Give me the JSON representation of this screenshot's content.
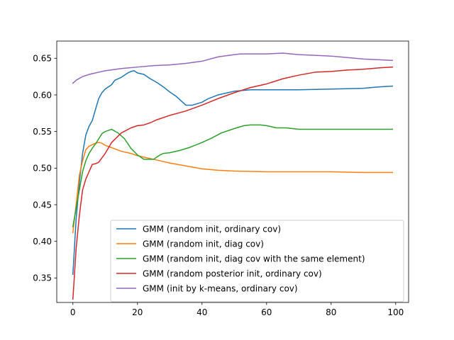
{
  "chart_data": {
    "type": "line",
    "title": "",
    "xlabel": "",
    "ylabel": "",
    "xlim": [
      -5,
      104
    ],
    "ylim": [
      0.3165,
      0.6735
    ],
    "x_ticks": [
      0,
      20,
      40,
      60,
      80,
      100
    ],
    "x_tick_labels": [
      "0",
      "20",
      "40",
      "60",
      "80",
      "100"
    ],
    "y_ticks": [
      0.35,
      0.4,
      0.45,
      0.5,
      0.55,
      0.6,
      0.65
    ],
    "y_tick_labels": [
      "0.35",
      "0.40",
      "0.45",
      "0.50",
      "0.55",
      "0.60",
      "0.65"
    ],
    "grid": false,
    "legend_placement": "lower-right",
    "series": [
      {
        "name": "GMM (random init, ordinary cov)",
        "color": "#1f77b4",
        "points": [
          [
            0,
            0.355
          ],
          [
            1,
            0.43
          ],
          [
            2,
            0.48
          ],
          [
            3,
            0.52
          ],
          [
            4,
            0.545
          ],
          [
            5,
            0.557
          ],
          [
            6,
            0.565
          ],
          [
            7,
            0.58
          ],
          [
            8,
            0.595
          ],
          [
            9,
            0.603
          ],
          [
            10,
            0.608
          ],
          [
            12,
            0.614
          ],
          [
            13,
            0.62
          ],
          [
            15,
            0.624
          ],
          [
            17,
            0.63
          ],
          [
            18,
            0.632
          ],
          [
            19,
            0.633
          ],
          [
            20,
            0.63
          ],
          [
            22,
            0.628
          ],
          [
            24,
            0.622
          ],
          [
            26,
            0.617
          ],
          [
            28,
            0.611
          ],
          [
            30,
            0.604
          ],
          [
            32,
            0.598
          ],
          [
            34,
            0.59
          ],
          [
            35,
            0.586
          ],
          [
            37,
            0.586
          ],
          [
            40,
            0.59
          ],
          [
            42,
            0.595
          ],
          [
            45,
            0.6
          ],
          [
            48,
            0.603
          ],
          [
            50,
            0.605
          ],
          [
            55,
            0.607
          ],
          [
            60,
            0.607
          ],
          [
            70,
            0.607
          ],
          [
            80,
            0.608
          ],
          [
            90,
            0.609
          ],
          [
            95,
            0.611
          ],
          [
            99,
            0.612
          ]
        ]
      },
      {
        "name": "GMM (random init, diag cov)",
        "color": "#ff7f0e",
        "points": [
          [
            0,
            0.412
          ],
          [
            1,
            0.45
          ],
          [
            2,
            0.49
          ],
          [
            3,
            0.51
          ],
          [
            4,
            0.525
          ],
          [
            5,
            0.53
          ],
          [
            6,
            0.532
          ],
          [
            7,
            0.534
          ],
          [
            8,
            0.535
          ],
          [
            9,
            0.534
          ],
          [
            10,
            0.531
          ],
          [
            12,
            0.528
          ],
          [
            15,
            0.523
          ],
          [
            18,
            0.52
          ],
          [
            20,
            0.517
          ],
          [
            25,
            0.512
          ],
          [
            30,
            0.507
          ],
          [
            35,
            0.503
          ],
          [
            40,
            0.499
          ],
          [
            45,
            0.497
          ],
          [
            50,
            0.496
          ],
          [
            60,
            0.495
          ],
          [
            70,
            0.495
          ],
          [
            80,
            0.495
          ],
          [
            90,
            0.494
          ],
          [
            99,
            0.494
          ]
        ]
      },
      {
        "name": "GMM (random init, diag cov with the same element)",
        "color": "#2ca02c",
        "points": [
          [
            0,
            0.42
          ],
          [
            1,
            0.445
          ],
          [
            2,
            0.47
          ],
          [
            3,
            0.495
          ],
          [
            4,
            0.51
          ],
          [
            5,
            0.52
          ],
          [
            6,
            0.527
          ],
          [
            7,
            0.533
          ],
          [
            8,
            0.54
          ],
          [
            9,
            0.547
          ],
          [
            10,
            0.55
          ],
          [
            12,
            0.553
          ],
          [
            14,
            0.548
          ],
          [
            16,
            0.54
          ],
          [
            18,
            0.527
          ],
          [
            20,
            0.518
          ],
          [
            22,
            0.512
          ],
          [
            25,
            0.512
          ],
          [
            27,
            0.518
          ],
          [
            28,
            0.52
          ],
          [
            30,
            0.521
          ],
          [
            33,
            0.524
          ],
          [
            36,
            0.528
          ],
          [
            40,
            0.535
          ],
          [
            43,
            0.541
          ],
          [
            46,
            0.548
          ],
          [
            50,
            0.554
          ],
          [
            53,
            0.558
          ],
          [
            55,
            0.559
          ],
          [
            58,
            0.559
          ],
          [
            60,
            0.558
          ],
          [
            63,
            0.555
          ],
          [
            66,
            0.555
          ],
          [
            70,
            0.553
          ],
          [
            75,
            0.553
          ],
          [
            80,
            0.553
          ],
          [
            90,
            0.553
          ],
          [
            99,
            0.553
          ]
        ]
      },
      {
        "name": "GMM (random posterior init, ordinary cov)",
        "color": "#d62728",
        "points": [
          [
            0,
            0.321
          ],
          [
            1,
            0.39
          ],
          [
            2,
            0.435
          ],
          [
            3,
            0.47
          ],
          [
            4,
            0.485
          ],
          [
            5,
            0.495
          ],
          [
            6,
            0.505
          ],
          [
            7,
            0.506
          ],
          [
            8,
            0.508
          ],
          [
            10,
            0.52
          ],
          [
            12,
            0.535
          ],
          [
            15,
            0.548
          ],
          [
            18,
            0.555
          ],
          [
            20,
            0.558
          ],
          [
            22,
            0.559
          ],
          [
            24,
            0.562
          ],
          [
            26,
            0.566
          ],
          [
            30,
            0.572
          ],
          [
            35,
            0.578
          ],
          [
            40,
            0.586
          ],
          [
            45,
            0.595
          ],
          [
            50,
            0.603
          ],
          [
            55,
            0.61
          ],
          [
            60,
            0.615
          ],
          [
            65,
            0.622
          ],
          [
            70,
            0.627
          ],
          [
            75,
            0.631
          ],
          [
            80,
            0.632
          ],
          [
            85,
            0.634
          ],
          [
            90,
            0.635
          ],
          [
            95,
            0.637
          ],
          [
            99,
            0.638
          ]
        ]
      },
      {
        "name": "GMM (init by k-means, ordinary cov)",
        "color": "#9467bd",
        "points": [
          [
            0,
            0.616
          ],
          [
            1,
            0.62
          ],
          [
            3,
            0.625
          ],
          [
            5,
            0.628
          ],
          [
            8,
            0.631
          ],
          [
            10,
            0.633
          ],
          [
            15,
            0.636
          ],
          [
            20,
            0.638
          ],
          [
            25,
            0.64
          ],
          [
            30,
            0.641
          ],
          [
            35,
            0.643
          ],
          [
            40,
            0.646
          ],
          [
            45,
            0.652
          ],
          [
            50,
            0.655
          ],
          [
            52,
            0.656
          ],
          [
            55,
            0.656
          ],
          [
            60,
            0.656
          ],
          [
            65,
            0.657
          ],
          [
            70,
            0.655
          ],
          [
            75,
            0.654
          ],
          [
            80,
            0.653
          ],
          [
            85,
            0.651
          ],
          [
            90,
            0.649
          ],
          [
            95,
            0.648
          ],
          [
            99,
            0.647
          ]
        ]
      }
    ]
  }
}
